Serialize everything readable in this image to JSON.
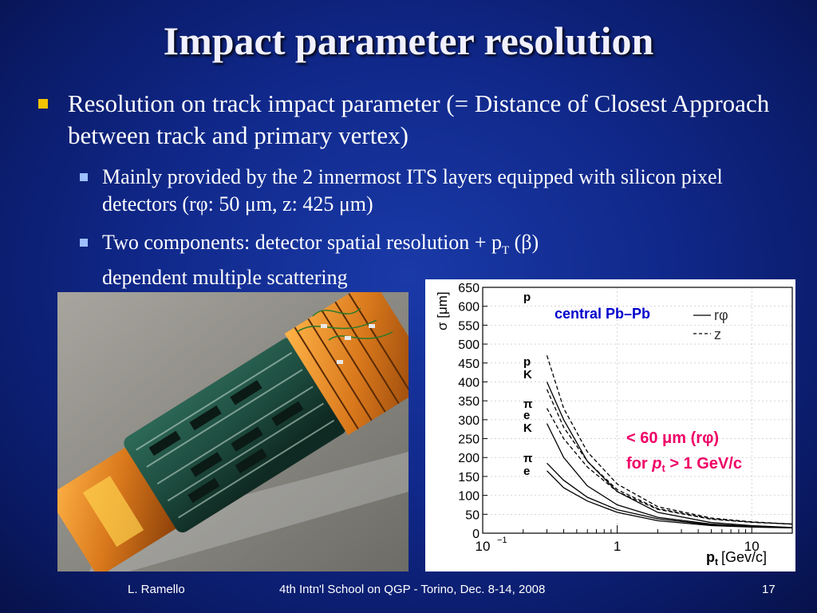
{
  "slide": {
    "title": "Impact parameter resolution",
    "bullet1": "Resolution on track impact parameter (= Distance of Closest Approach between track and primary vertex)",
    "bullet2": "Mainly provided by the 2 innermost ITS layers equipped with silicon pixel detectors (rφ: 50 μm, z: 425 μm)",
    "bullet3_pre": "Two components: detector spatial resolution + p",
    "bullet3_sub": "T",
    "bullet3_post": " (β)",
    "bullet3_line2": "dependent multiple scattering"
  },
  "footer": {
    "author": "L. Ramello",
    "event": "4th Intn'l School on QGP  - Torino, Dec. 8-14, 2008",
    "page": "17"
  },
  "chart_data": {
    "type": "line",
    "x_scale": "log",
    "xlim": [
      0.1,
      20
    ],
    "ylim": [
      0,
      650
    ],
    "xlabel": "p",
    "xlabel_sub": "t",
    "xlabel_unit": "[Gev/c]",
    "ylabel": "σ [μm]",
    "x_ticks": [
      "10",
      "1",
      "10"
    ],
    "x_tick_exp": "−1",
    "y_ticks": [
      0,
      50,
      100,
      150,
      200,
      250,
      300,
      350,
      400,
      450,
      500,
      550,
      600,
      650
    ],
    "legend": {
      "header": "central Pb–Pb",
      "solid": "rφ",
      "dashed": "z"
    },
    "particle_labels": [
      "p",
      "p",
      "K",
      "π",
      "e",
      "K",
      "π",
      "e"
    ],
    "annotation_line1_pre": "< 60 ",
    "annotation_mu": "μ",
    "annotation_line1_post": "m (rφ)",
    "annotation_line2_pre": "for ",
    "annotation_line2_p": "p",
    "annotation_line2_sub": "t",
    "annotation_line2_post": " > 1 GeV/c",
    "series": [
      {
        "line": "dashed",
        "x": [
          0.3,
          0.4,
          0.6,
          1,
          2,
          5,
          10,
          20
        ],
        "y": [
          470,
          330,
          215,
          130,
          70,
          40,
          30,
          24
        ]
      },
      {
        "line": "dashed",
        "x": [
          0.3,
          0.4,
          0.6,
          1,
          2,
          5,
          10,
          20
        ],
        "y": [
          380,
          280,
          190,
          115,
          65,
          38,
          29,
          24
        ]
      },
      {
        "line": "dashed",
        "x": [
          0.3,
          0.4,
          0.6,
          1,
          2,
          5,
          10,
          20
        ],
        "y": [
          330,
          250,
          175,
          110,
          63,
          37,
          29,
          24
        ]
      },
      {
        "line": "solid",
        "x": [
          0.3,
          0.4,
          0.6,
          1,
          2,
          5,
          10,
          20
        ],
        "y": [
          400,
          300,
          190,
          110,
          55,
          28,
          20,
          15
        ]
      },
      {
        "line": "solid",
        "x": [
          0.3,
          0.4,
          0.6,
          1,
          2,
          5,
          10,
          20
        ],
        "y": [
          290,
          200,
          125,
          75,
          42,
          24,
          18,
          14
        ]
      },
      {
        "line": "solid",
        "x": [
          0.3,
          0.4,
          0.6,
          1,
          2,
          5,
          10,
          20
        ],
        "y": [
          185,
          140,
          95,
          62,
          38,
          22,
          17,
          14
        ]
      },
      {
        "line": "solid",
        "x": [
          0.3,
          0.4,
          0.6,
          1,
          2,
          5,
          10,
          20
        ],
        "y": [
          165,
          120,
          85,
          55,
          33,
          20,
          16,
          14
        ]
      }
    ]
  }
}
